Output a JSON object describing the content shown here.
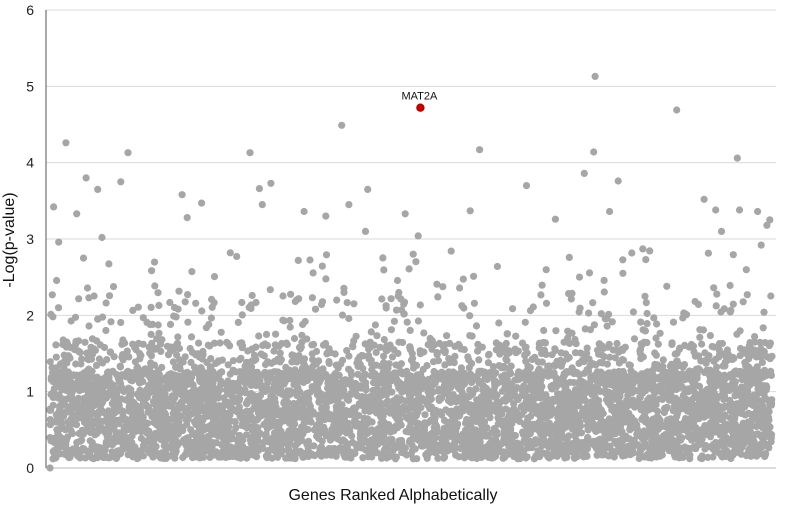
{
  "chart_data": {
    "type": "scatter",
    "title": "",
    "xlabel": "Genes Ranked Alphabetically",
    "ylabel": "-Log(p-value)",
    "ylim": [
      0,
      6
    ],
    "yticks": [
      "0",
      "1",
      "2",
      "3",
      "4",
      "5",
      "6"
    ],
    "grid": true,
    "x_tick_labels": false,
    "point_color": "#a6a6a6",
    "highlight_color": "#c00000",
    "highlight": {
      "label": "MAT2A",
      "y": 4.72,
      "x_fraction": 0.513
    },
    "notable_points": [
      {
        "xf": 0.005,
        "y": 3.42
      },
      {
        "xf": 0.012,
        "y": 2.96
      },
      {
        "xf": 0.022,
        "y": 4.26
      },
      {
        "xf": 0.037,
        "y": 3.33
      },
      {
        "xf": 0.05,
        "y": 3.8
      },
      {
        "xf": 0.066,
        "y": 3.65
      },
      {
        "xf": 0.072,
        "y": 3.02
      },
      {
        "xf": 0.098,
        "y": 3.75
      },
      {
        "xf": 0.108,
        "y": 4.13
      },
      {
        "xf": 0.183,
        "y": 3.58
      },
      {
        "xf": 0.19,
        "y": 3.28
      },
      {
        "xf": 0.21,
        "y": 3.47
      },
      {
        "xf": 0.277,
        "y": 4.13
      },
      {
        "xf": 0.29,
        "y": 3.66
      },
      {
        "xf": 0.294,
        "y": 3.45
      },
      {
        "xf": 0.306,
        "y": 3.73
      },
      {
        "xf": 0.352,
        "y": 3.36
      },
      {
        "xf": 0.382,
        "y": 3.3
      },
      {
        "xf": 0.404,
        "y": 4.49
      },
      {
        "xf": 0.414,
        "y": 3.45
      },
      {
        "xf": 0.44,
        "y": 3.65
      },
      {
        "xf": 0.437,
        "y": 3.1
      },
      {
        "xf": 0.492,
        "y": 3.33
      },
      {
        "xf": 0.51,
        "y": 3.04
      },
      {
        "xf": 0.582,
        "y": 3.37
      },
      {
        "xf": 0.595,
        "y": 4.17
      },
      {
        "xf": 0.66,
        "y": 3.7
      },
      {
        "xf": 0.7,
        "y": 3.26
      },
      {
        "xf": 0.74,
        "y": 3.86
      },
      {
        "xf": 0.755,
        "y": 5.13
      },
      {
        "xf": 0.753,
        "y": 4.14
      },
      {
        "xf": 0.775,
        "y": 3.36
      },
      {
        "xf": 0.787,
        "y": 3.76
      },
      {
        "xf": 0.821,
        "y": 2.87
      },
      {
        "xf": 0.868,
        "y": 4.69
      },
      {
        "xf": 0.906,
        "y": 3.52
      },
      {
        "xf": 0.922,
        "y": 3.38
      },
      {
        "xf": 0.93,
        "y": 3.1
      },
      {
        "xf": 0.952,
        "y": 4.06
      },
      {
        "xf": 0.955,
        "y": 3.38
      },
      {
        "xf": 0.98,
        "y": 3.36
      },
      {
        "xf": 0.997,
        "y": 3.25
      },
      {
        "xf": 0.993,
        "y": 3.18
      },
      {
        "xf": 0.985,
        "y": 2.92
      },
      {
        "xf": 0.0,
        "y": 0.0
      }
    ]
  }
}
